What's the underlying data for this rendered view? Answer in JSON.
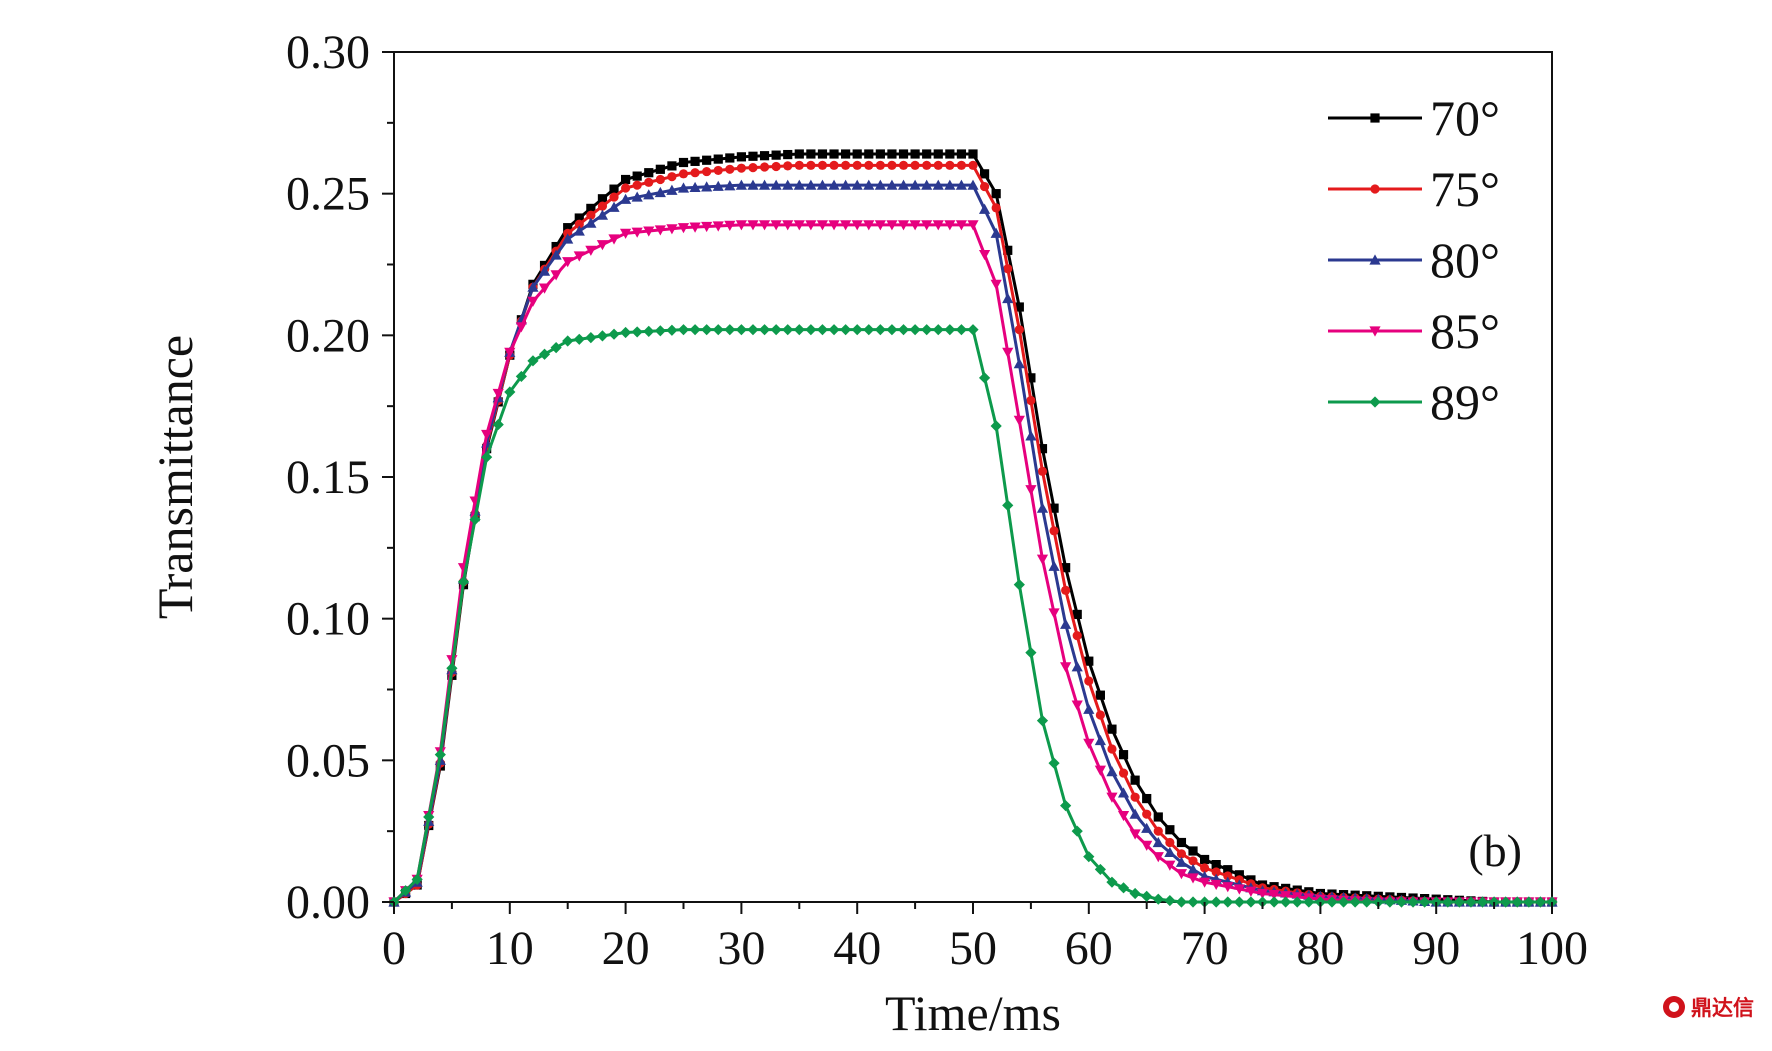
{
  "chart_data": {
    "type": "line",
    "title": "",
    "xlabel": "Time/ms",
    "ylabel": "Transmittance",
    "xlim": [
      0,
      100
    ],
    "ylim": [
      0,
      0.3
    ],
    "xticks": [
      "0",
      "10",
      "20",
      "30",
      "40",
      "50",
      "60",
      "70",
      "80",
      "90",
      "100"
    ],
    "yticks": [
      "0.00",
      "0.05",
      "0.10",
      "0.15",
      "0.20",
      "0.25",
      "0.30"
    ],
    "panel_label": "(b)",
    "grid": false,
    "legend_position": "top-right",
    "x": [
      0,
      2,
      4,
      6,
      8,
      10,
      12,
      15,
      20,
      25,
      30,
      35,
      40,
      45,
      50,
      52,
      54,
      56,
      58,
      60,
      62,
      64,
      66,
      68,
      70,
      75,
      80,
      85,
      90,
      95,
      100
    ],
    "series": [
      {
        "name": "70°",
        "color": "#000000",
        "marker": "square",
        "values": [
          0.0,
          0.006,
          0.048,
          0.112,
          0.16,
          0.193,
          0.218,
          0.238,
          0.255,
          0.261,
          0.263,
          0.264,
          0.264,
          0.264,
          0.264,
          0.25,
          0.21,
          0.16,
          0.118,
          0.085,
          0.061,
          0.043,
          0.03,
          0.021,
          0.015,
          0.006,
          0.003,
          0.002,
          0.001,
          0.0,
          0.0
        ]
      },
      {
        "name": "75°",
        "color": "#e41a1c",
        "marker": "circle",
        "values": [
          0.0,
          0.006,
          0.049,
          0.113,
          0.161,
          0.193,
          0.217,
          0.236,
          0.252,
          0.257,
          0.259,
          0.26,
          0.26,
          0.26,
          0.26,
          0.245,
          0.202,
          0.152,
          0.11,
          0.078,
          0.054,
          0.037,
          0.025,
          0.017,
          0.012,
          0.005,
          0.002,
          0.001,
          0.0,
          0.0,
          0.0
        ]
      },
      {
        "name": "80°",
        "color": "#2b3990",
        "marker": "triangle-up",
        "values": [
          0.0,
          0.007,
          0.05,
          0.114,
          0.162,
          0.194,
          0.217,
          0.234,
          0.248,
          0.252,
          0.253,
          0.253,
          0.253,
          0.253,
          0.253,
          0.236,
          0.19,
          0.139,
          0.098,
          0.068,
          0.046,
          0.031,
          0.021,
          0.014,
          0.009,
          0.004,
          0.002,
          0.001,
          0.0,
          0.0,
          0.0
        ]
      },
      {
        "name": "85°",
        "color": "#e6007e",
        "marker": "triangle-down",
        "values": [
          0.0,
          0.008,
          0.053,
          0.118,
          0.165,
          0.194,
          0.212,
          0.226,
          0.236,
          0.238,
          0.239,
          0.239,
          0.239,
          0.239,
          0.239,
          0.218,
          0.17,
          0.121,
          0.083,
          0.056,
          0.037,
          0.024,
          0.016,
          0.01,
          0.007,
          0.003,
          0.001,
          0.0,
          0.0,
          0.0,
          0.0
        ]
      },
      {
        "name": "89°",
        "color": "#0d9a4c",
        "marker": "diamond",
        "values": [
          0.0,
          0.008,
          0.052,
          0.113,
          0.157,
          0.18,
          0.191,
          0.198,
          0.201,
          0.202,
          0.202,
          0.202,
          0.202,
          0.202,
          0.202,
          0.168,
          0.112,
          0.064,
          0.034,
          0.016,
          0.007,
          0.003,
          0.001,
          0.0,
          0.0,
          0.0,
          0.0,
          0.0,
          0.0,
          0.0,
          0.0
        ]
      }
    ]
  },
  "watermark": {
    "text": "鼎达信"
  }
}
